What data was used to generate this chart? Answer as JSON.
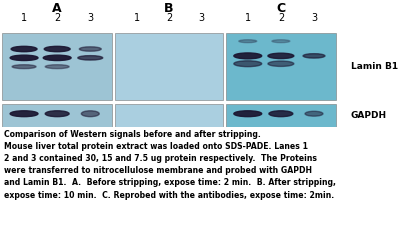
{
  "bg_color": "#ffffff",
  "blot_bg_A": "#9dc4d4",
  "blot_bg_B": "#aacfe0",
  "blot_bg_C": "#6cb8cc",
  "panel_labels": [
    "A",
    "B",
    "C"
  ],
  "lane_labels": [
    "1",
    "2",
    "3"
  ],
  "band_labels": [
    "Lamin B1",
    "GAPDH"
  ],
  "caption_lines": [
    "Comparison of Western signals before and after stripping.",
    "Mouse liver total protein extract was loaded onto SDS-PADE. Lanes 1",
    "2 and 3 contained 30, 15 and 7.5 ug protein respectively.  The Proteins",
    "were transferred to nitrocellulose membrane and probed with GAPDH",
    "and Lamin B1.  A.  Before stripping, expose time: 2 min.  B. After stripping,",
    "expose time: 10 min.  C. Reprobed with the antibodies, expose time: 2min."
  ],
  "figure_width": 4.0,
  "figure_height": 2.36,
  "band_color": "#1a1530"
}
